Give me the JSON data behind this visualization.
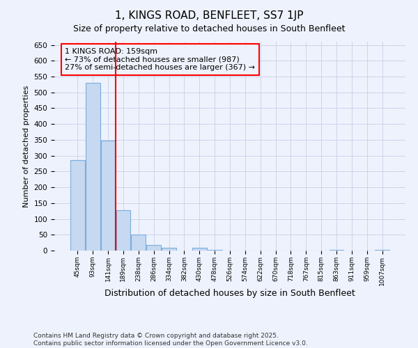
{
  "title": "1, KINGS ROAD, BENFLEET, SS7 1JP",
  "subtitle": "Size of property relative to detached houses in South Benfleet",
  "xlabel": "Distribution of detached houses by size in South Benfleet",
  "ylabel": "Number of detached properties",
  "categories": [
    "45sqm",
    "93sqm",
    "141sqm",
    "189sqm",
    "238sqm",
    "286sqm",
    "334sqm",
    "382sqm",
    "430sqm",
    "478sqm",
    "526sqm",
    "574sqm",
    "622sqm",
    "670sqm",
    "718sqm",
    "767sqm",
    "815sqm",
    "863sqm",
    "911sqm",
    "959sqm",
    "1007sqm"
  ],
  "values": [
    285,
    530,
    348,
    127,
    51,
    18,
    8,
    0,
    8,
    2,
    0,
    0,
    0,
    0,
    0,
    0,
    0,
    2,
    0,
    0,
    2
  ],
  "bar_color": "#c6d9f0",
  "bar_edge_color": "#7aadde",
  "vline_x": 2.5,
  "vline_color": "red",
  "annotation_title": "1 KINGS ROAD: 159sqm",
  "annotation_line1": "← 73% of detached houses are smaller (987)",
  "annotation_line2": "27% of semi-detached houses are larger (367) →",
  "annotation_box_color": "red",
  "ylim": [
    0,
    660
  ],
  "yticks": [
    0,
    50,
    100,
    150,
    200,
    250,
    300,
    350,
    400,
    450,
    500,
    550,
    600,
    650
  ],
  "footer_line1": "Contains HM Land Registry data © Crown copyright and database right 2025.",
  "footer_line2": "Contains public sector information licensed under the Open Government Licence v3.0.",
  "background_color": "#eef2fc",
  "grid_color": "#c8d0e8",
  "title_fontsize": 11,
  "subtitle_fontsize": 9,
  "ylabel_fontsize": 8,
  "xlabel_fontsize": 9
}
